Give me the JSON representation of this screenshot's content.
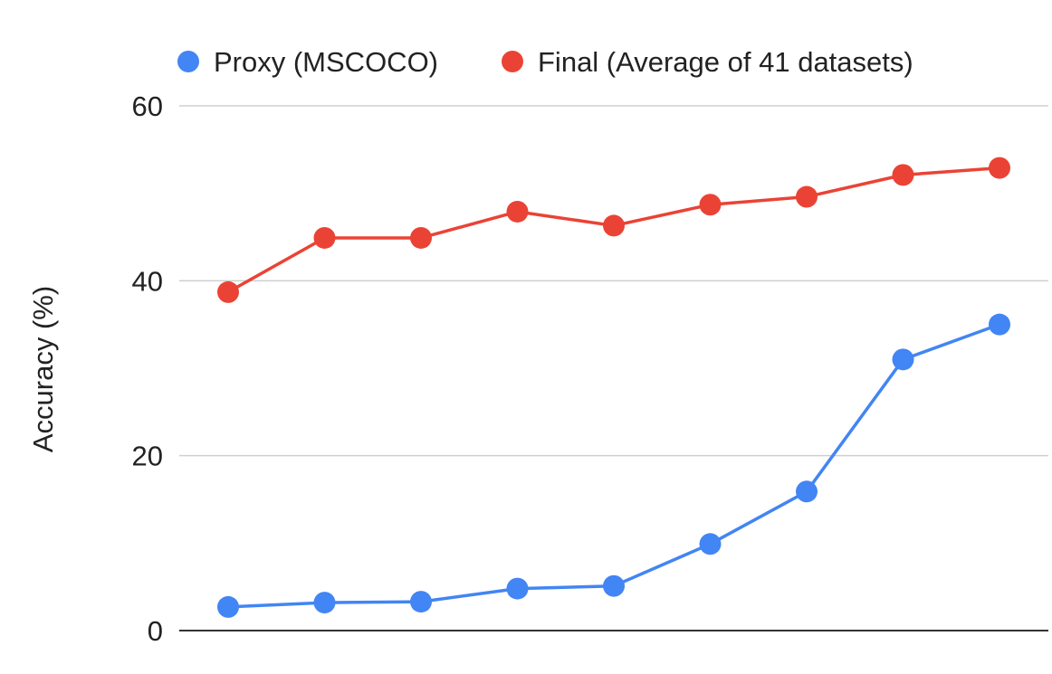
{
  "chart_data": {
    "type": "line",
    "title": "",
    "xlabel": "",
    "ylabel": "Accuracy (%)",
    "ylim": [
      0,
      60
    ],
    "yticks": [
      0,
      20,
      40,
      60
    ],
    "grid": true,
    "legend_position": "top",
    "x": [
      1,
      2,
      3,
      4,
      5,
      6,
      7,
      8,
      9
    ],
    "series": [
      {
        "name": "Proxy (MSCOCO)",
        "color": "#4285f4",
        "values": [
          2.7,
          3.2,
          3.3,
          4.8,
          5.1,
          9.9,
          15.9,
          31.0,
          35.0
        ]
      },
      {
        "name": "Final (Average of 41 datasets)",
        "color": "#ea4335",
        "values": [
          38.7,
          44.9,
          44.9,
          47.9,
          46.3,
          48.7,
          49.6,
          52.1,
          52.9
        ]
      }
    ]
  }
}
